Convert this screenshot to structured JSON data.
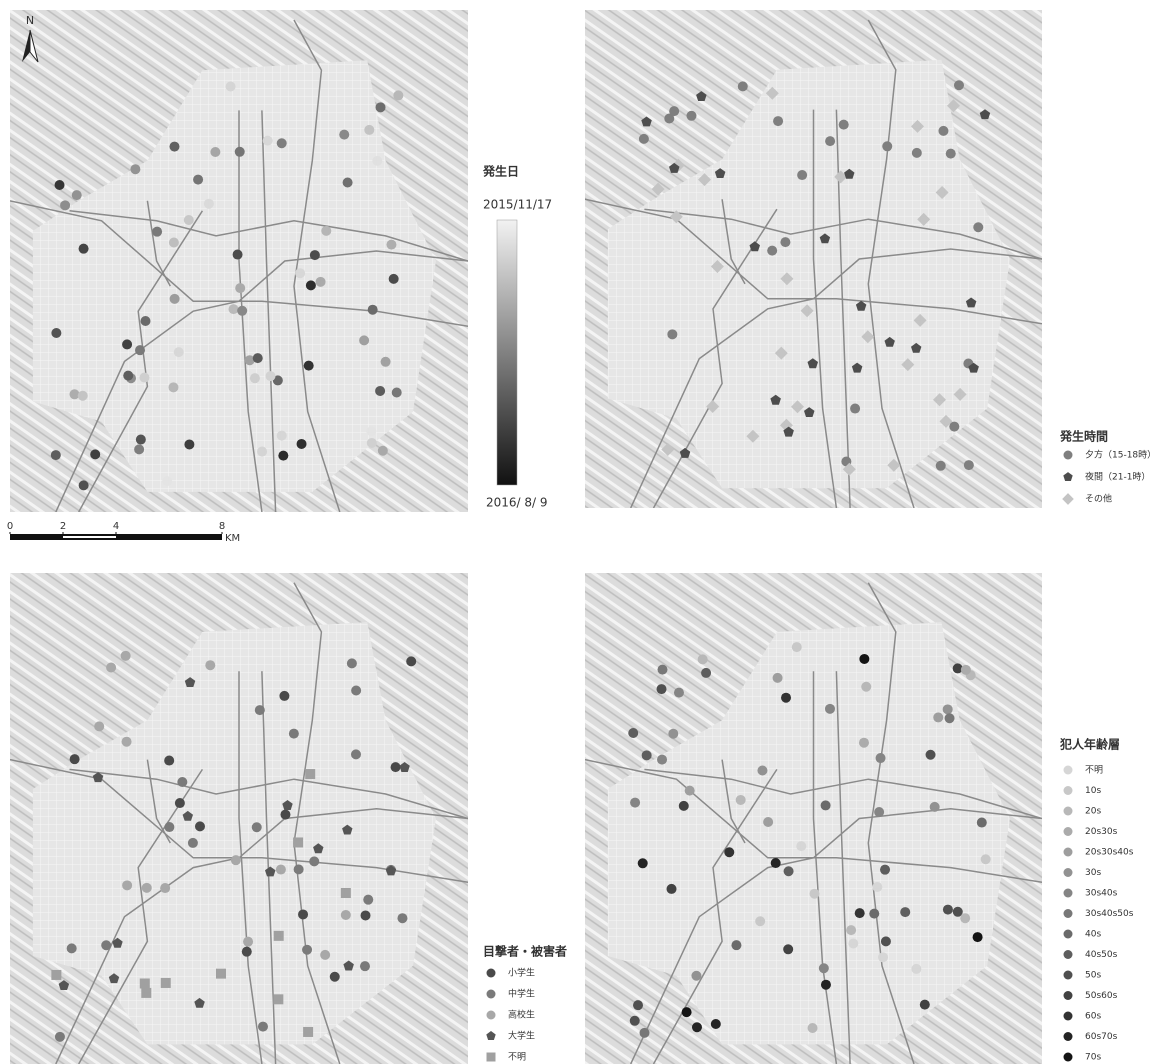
{
  "north": "N",
  "scale_bar": {
    "ticks": [
      0,
      2,
      4,
      8
    ],
    "unit": "KM"
  },
  "maps": [
    {
      "legend": {
        "title": "発生日",
        "start": "2015/11/17",
        "end": "2016/ 8/ 9"
      }
    },
    {
      "legend": {
        "title": "発生時間",
        "items": [
          {
            "label": "夕方（15-18時）",
            "shape": "circle",
            "color": "#7f7f7f"
          },
          {
            "label": "夜間（21-1時）",
            "shape": "pentagon",
            "color": "#4d4d4d"
          },
          {
            "label": "その他",
            "shape": "diamond",
            "color": "#c4c4c4"
          }
        ]
      }
    },
    {
      "legend": {
        "title": "目撃者・被害者",
        "items": [
          {
            "label": "小学生",
            "shape": "circle",
            "color": "#4a4a4a"
          },
          {
            "label": "中学生",
            "shape": "circle",
            "color": "#7a7a7a"
          },
          {
            "label": "高校生",
            "shape": "circle",
            "color": "#a8a8a8"
          },
          {
            "label": "大学生",
            "shape": "pentagon",
            "color": "#555555"
          },
          {
            "label": "不明",
            "shape": "square",
            "color": "#a0a0a0"
          }
        ]
      }
    },
    {
      "legend": {
        "title": "犯人年齢層",
        "items": [
          {
            "label": "不明",
            "shape": "circle",
            "color": "#d6d6d6"
          },
          {
            "label": "10s",
            "shape": "circle",
            "color": "#c8c8c8"
          },
          {
            "label": "20s",
            "shape": "circle",
            "color": "#b8b8b8"
          },
          {
            "label": "20s30s",
            "shape": "circle",
            "color": "#ababab"
          },
          {
            "label": "20s30s40s",
            "shape": "circle",
            "color": "#9e9e9e"
          },
          {
            "label": "30s",
            "shape": "circle",
            "color": "#929292"
          },
          {
            "label": "30s40s",
            "shape": "circle",
            "color": "#858585"
          },
          {
            "label": "30s40s50s",
            "shape": "circle",
            "color": "#787878"
          },
          {
            "label": "40s",
            "shape": "circle",
            "color": "#6b6b6b"
          },
          {
            "label": "40s50s",
            "shape": "circle",
            "color": "#5e5e5e"
          },
          {
            "label": "50s",
            "shape": "circle",
            "color": "#505050"
          },
          {
            "label": "50s60s",
            "shape": "circle",
            "color": "#424242"
          },
          {
            "label": "60s",
            "shape": "circle",
            "color": "#333333"
          },
          {
            "label": "60s70s",
            "shape": "circle",
            "color": "#242424"
          },
          {
            "label": "70s",
            "shape": "circle",
            "color": "#141414"
          }
        ]
      }
    }
  ]
}
